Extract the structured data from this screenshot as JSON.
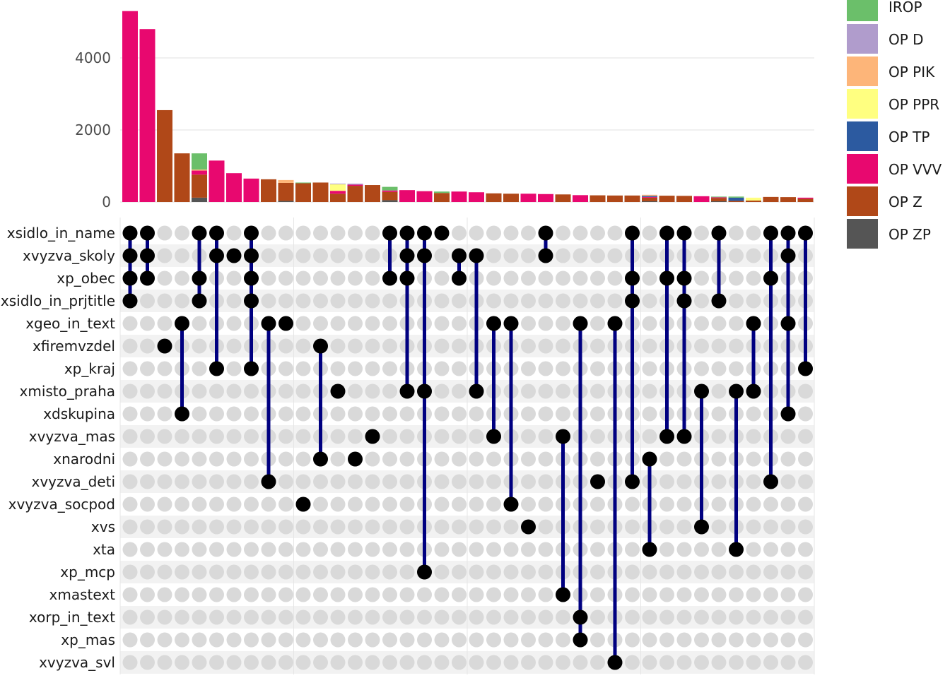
{
  "chart_data": {
    "type": "bar",
    "subtype": "upset",
    "y_ticks": [
      "0",
      "2000",
      "4000"
    ],
    "ylim": [
      0,
      5400
    ],
    "legend": {
      "position": "right",
      "entries": [
        {
          "label": "IROP",
          "color": "#6bbf6a"
        },
        {
          "label": "OP D",
          "color": "#b09ccc"
        },
        {
          "label": "OP PIK",
          "color": "#fdb579"
        },
        {
          "label": "OP PPR",
          "color": "#ffff80"
        },
        {
          "label": "OP TP",
          "color": "#2c5aa0"
        },
        {
          "label": "OP VVV",
          "color": "#e8086f"
        },
        {
          "label": "OP Z",
          "color": "#b04818"
        },
        {
          "label": "OP ZP",
          "color": "#555555"
        }
      ]
    },
    "stack_order": [
      "OP ZP",
      "OP Z",
      "OP VVV",
      "OP TP",
      "OP PPR",
      "OP PIK",
      "OP D",
      "IROP"
    ],
    "sets": [
      "xsidlo_in_name",
      "xvyzva_skoly",
      "xp_obec",
      "xsidlo_in_prjtitle",
      "xgeo_in_text",
      "xfiremvzdel",
      "xp_kraj",
      "xmisto_praha",
      "xdskupina",
      "xvyzva_mas",
      "xnarodni",
      "xvyzva_deti",
      "xvyzva_socpod",
      "xvs",
      "xta",
      "xp_mcp",
      "xmastext",
      "xorp_in_text",
      "xp_mas",
      "xvyzva_svl"
    ],
    "intersections": [
      {
        "sets": [
          0,
          1,
          2,
          3
        ],
        "values": {
          "OP VVV": 5300
        }
      },
      {
        "sets": [
          0,
          1,
          2
        ],
        "values": {
          "OP VVV": 4800
        }
      },
      {
        "sets": [
          5
        ],
        "values": {
          "OP Z": 2550
        }
      },
      {
        "sets": [
          4,
          8
        ],
        "values": {
          "OP Z": 1350
        }
      },
      {
        "sets": [
          0,
          2,
          3
        ],
        "values": {
          "OP ZP": 120,
          "OP Z": 640,
          "OP VVV": 120,
          "OP PPR": 10,
          "OP PIK": 10,
          "IROP": 450
        }
      },
      {
        "sets": [
          0,
          1,
          6
        ],
        "values": {
          "OP VVV": 1150
        }
      },
      {
        "sets": [
          1
        ],
        "values": {
          "OP VVV": 800
        }
      },
      {
        "sets": [
          0,
          1,
          2,
          3,
          6
        ],
        "values": {
          "OP VVV": 650
        }
      },
      {
        "sets": [
          4,
          11
        ],
        "values": {
          "OP Z": 630
        }
      },
      {
        "sets": [
          4
        ],
        "values": {
          "OP ZP": 30,
          "OP Z": 500,
          "OP PIK": 80
        }
      },
      {
        "sets": [
          12
        ],
        "values": {
          "OP Z": 520,
          "IROP": 20
        }
      },
      {
        "sets": [
          5,
          10
        ],
        "values": {
          "OP Z": 540
        }
      },
      {
        "sets": [
          7
        ],
        "values": {
          "OP Z": 230,
          "OP VVV": 80,
          "OP D": 20,
          "OP PPR": 180
        }
      },
      {
        "sets": [
          10
        ],
        "values": {
          "OP Z": 450,
          "OP VVV": 30,
          "OP D": 30
        }
      },
      {
        "sets": [
          9
        ],
        "values": {
          "OP Z": 470
        }
      },
      {
        "sets": [
          0,
          2
        ],
        "values": {
          "OP ZP": 50,
          "OP Z": 230,
          "OP VVV": 40,
          "IROP": 100
        }
      },
      {
        "sets": [
          0,
          1,
          2,
          7
        ],
        "values": {
          "OP VVV": 330
        }
      },
      {
        "sets": [
          0,
          1,
          7,
          15
        ],
        "values": {
          "OP VVV": 300
        }
      },
      {
        "sets": [
          0
        ],
        "values": {
          "OP Z": 250,
          "IROP": 40
        }
      },
      {
        "sets": [
          1,
          2
        ],
        "values": {
          "OP VVV": 290
        }
      },
      {
        "sets": [
          1,
          7
        ],
        "values": {
          "OP VVV": 270
        }
      },
      {
        "sets": [
          4,
          9
        ],
        "values": {
          "OP Z": 240
        }
      },
      {
        "sets": [
          4,
          12
        ],
        "values": {
          "OP Z": 230
        }
      },
      {
        "sets": [
          13
        ],
        "values": {
          "OP VVV": 230
        }
      },
      {
        "sets": [
          0,
          1
        ],
        "values": {
          "OP VVV": 220
        }
      },
      {
        "sets": [
          9,
          16
        ],
        "values": {
          "OP Z": 210
        }
      },
      {
        "sets": [
          4,
          17,
          18
        ],
        "values": {
          "OP VVV": 190
        }
      },
      {
        "sets": [
          11
        ],
        "values": {
          "OP Z": 185
        }
      },
      {
        "sets": [
          4,
          19
        ],
        "values": {
          "OP Z": 180
        }
      },
      {
        "sets": [
          0,
          2,
          3,
          11
        ],
        "values": {
          "OP Z": 180
        }
      },
      {
        "sets": [
          10,
          14
        ],
        "values": {
          "OP ZP": 20,
          "OP Z": 100,
          "OP TP": 30,
          "OP VVV": 20,
          "OP PIK": 30
        }
      },
      {
        "sets": [
          0,
          2,
          9
        ],
        "values": {
          "OP Z": 175
        }
      },
      {
        "sets": [
          0,
          2,
          3,
          9
        ],
        "values": {
          "OP Z": 170
        }
      },
      {
        "sets": [
          7,
          13
        ],
        "values": {
          "OP VVV": 160
        }
      },
      {
        "sets": [
          0,
          3
        ],
        "values": {
          "OP ZP": 20,
          "OP Z": 90,
          "OP VVV": 20,
          "IROP": 20
        }
      },
      {
        "sets": [
          7,
          14
        ],
        "values": {
          "OP Z": 30,
          "OP TP": 90,
          "IROP": 30
        }
      },
      {
        "sets": [
          4,
          7
        ],
        "values": {
          "OP Z": 40,
          "OP PPR": 80
        }
      },
      {
        "sets": [
          0,
          2,
          11
        ],
        "values": {
          "OP Z": 140
        }
      },
      {
        "sets": [
          0,
          1,
          4,
          8
        ],
        "values": {
          "OP Z": 135
        }
      },
      {
        "sets": [
          0,
          6
        ],
        "values": {
          "OP Z": 90,
          "OP VVV": 30
        }
      }
    ]
  }
}
